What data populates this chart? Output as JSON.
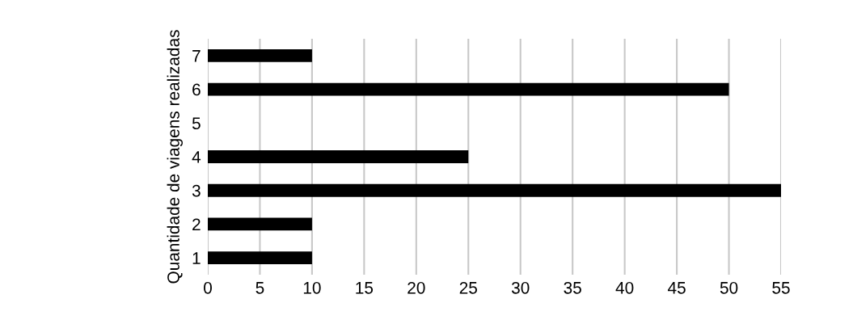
{
  "chart_data": {
    "type": "bar",
    "orientation": "horizontal",
    "ylabel": "Quantidade de viagens realizadas",
    "categories": [
      "7",
      "6",
      "5",
      "4",
      "3",
      "2",
      "1"
    ],
    "values": [
      10,
      50,
      0,
      25,
      55,
      10,
      10
    ],
    "color": "#000000",
    "xlim": [
      0,
      55
    ],
    "xticks": [
      0,
      5,
      10,
      15,
      20,
      25,
      30,
      35,
      40,
      45,
      50,
      55
    ],
    "grid": "x"
  }
}
